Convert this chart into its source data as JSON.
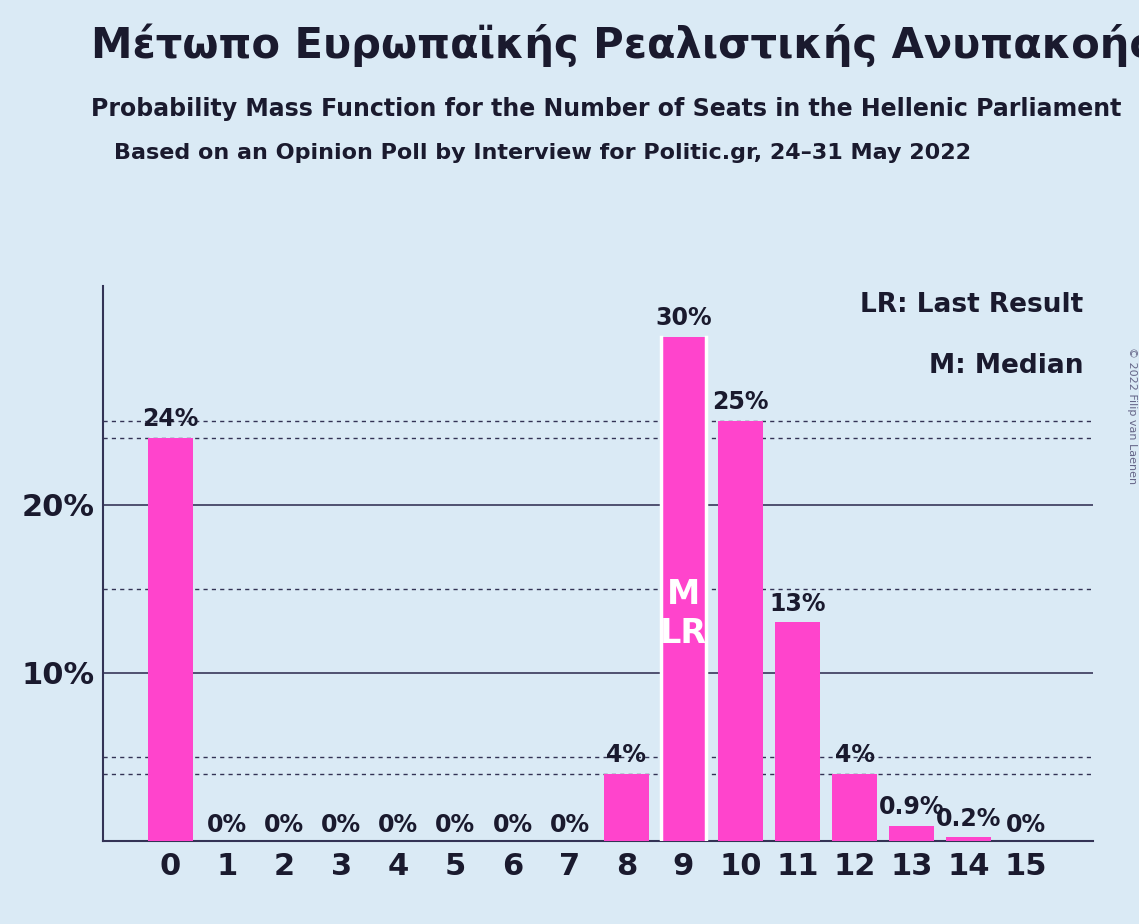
{
  "title": "Μέτωπο Ευρωπαϊκής Ρεαλιστικής Ανυπακοής",
  "subtitle1": "Probability Mass Function for the Number of Seats in the Hellenic Parliament",
  "subtitle2": "Based on an Opinion Poll by Interview for Politic.gr, 24–31 May 2022",
  "copyright": "© 2022 Filip van Laenen",
  "legend_lr": "LR: Last Result",
  "legend_m": "M: Median",
  "categories": [
    0,
    1,
    2,
    3,
    4,
    5,
    6,
    7,
    8,
    9,
    10,
    11,
    12,
    13,
    14,
    15
  ],
  "values": [
    24,
    0,
    0,
    0,
    0,
    0,
    0,
    0,
    4,
    30,
    25,
    13,
    4,
    0.9,
    0.2,
    0
  ],
  "labels": [
    "24%",
    "0%",
    "0%",
    "0%",
    "0%",
    "0%",
    "0%",
    "0%",
    "4%",
    "30%",
    "25%",
    "13%",
    "4%",
    "0.9%",
    "0.2%",
    "0%"
  ],
  "bar_color": "#FF44CC",
  "background_color": "#daeaf5",
  "median_seat": 9,
  "lr_seat": 9,
  "median_label": "M",
  "lr_label": "LR",
  "ylim": [
    0,
    33
  ],
  "solid_gridlines": [
    10,
    20
  ],
  "dotted_gridlines": [
    5,
    15,
    25
  ],
  "extra_dotted": [
    4,
    24
  ],
  "title_fontsize": 30,
  "subtitle1_fontsize": 17,
  "subtitle2_fontsize": 16,
  "tick_fontsize": 22,
  "label_fontsize": 17,
  "legend_fontsize": 19,
  "mlr_fontsize": 24
}
